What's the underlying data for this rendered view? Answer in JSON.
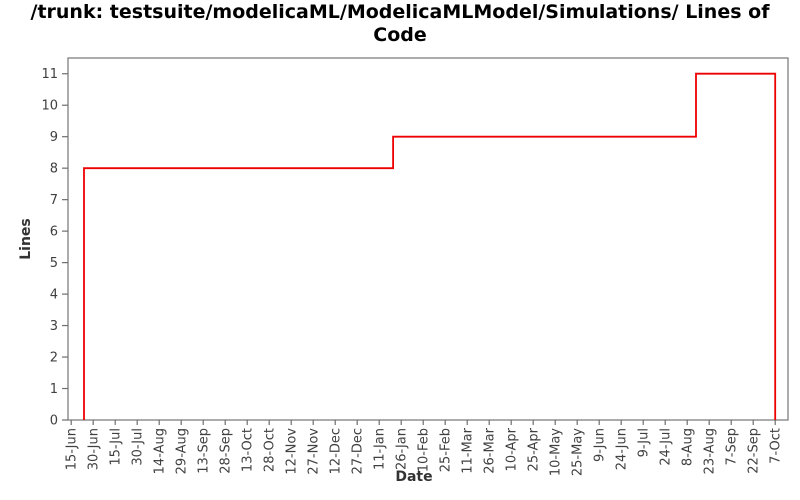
{
  "title_lines": {
    "line1": "/trunk: testsuite/modelicaML/ModelicaMLModel/Simulations/ Lines of",
    "line2": "Code"
  },
  "chart_data": {
    "type": "line",
    "step": true,
    "title": "/trunk: testsuite/modelicaML/ModelicaMLModel/Simulations/ Lines of Code",
    "xlabel": "Date",
    "ylabel": "Lines",
    "ylim": [
      0,
      11.5
    ],
    "y_ticks": [
      0,
      1,
      2,
      3,
      4,
      5,
      6,
      7,
      8,
      9,
      10,
      11
    ],
    "x_tick_labels": [
      "15-Jun",
      "30-Jun",
      "15-Jul",
      "30-Jul",
      "14-Aug",
      "29-Aug",
      "13-Sep",
      "28-Sep",
      "13-Oct",
      "28-Oct",
      "12-Nov",
      "27-Nov",
      "12-Dec",
      "27-Dec",
      "11-Jan",
      "26-Jan",
      "10-Feb",
      "25-Feb",
      "11-Mar",
      "26-Mar",
      "10-Apr",
      "25-Apr",
      "10-May",
      "25-May",
      "9-Jun",
      "24-Jun",
      "9-Jul",
      "24-Jul",
      "8-Aug",
      "23-Aug",
      "7-Sep",
      "22-Sep",
      "7-Oct"
    ],
    "grid": false,
    "legend": false,
    "series": [
      {
        "name": "Lines of Code",
        "color": "#ee0000",
        "x_unit": "tick-index (0 = 15-Jun, 32 = 7-Oct, 15-day spacing)",
        "points": [
          {
            "x": 0.58,
            "y": 0
          },
          {
            "x": 0.58,
            "y": 8
          },
          {
            "x": 14.63,
            "y": 8
          },
          {
            "x": 14.63,
            "y": 9
          },
          {
            "x": 28.4,
            "y": 9
          },
          {
            "x": 28.4,
            "y": 11
          },
          {
            "x": 32,
            "y": 11
          },
          {
            "x": 32,
            "y": 0
          }
        ],
        "steps_readable": [
          {
            "from": "~24-Jun",
            "value": 8
          },
          {
            "from": "~20-Jan",
            "value": 9
          },
          {
            "from": "~14-Aug",
            "value": 11
          },
          {
            "from": "7-Oct",
            "value": 0
          }
        ]
      }
    ],
    "colors": {
      "line": "#ee0000",
      "frame": "#808080",
      "tick": "#6e6e6e",
      "tick_text": "#404040",
      "title_text": "#000000",
      "background": "#ffffff"
    }
  }
}
